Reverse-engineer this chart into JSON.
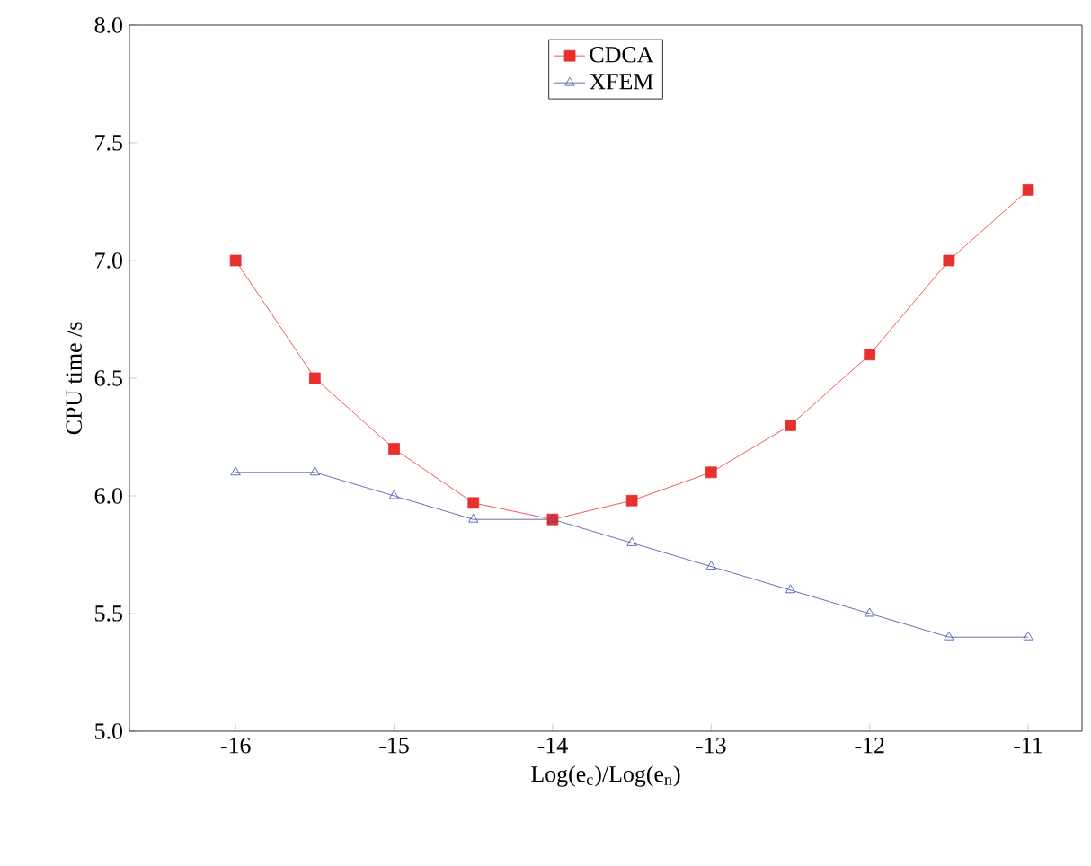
{
  "chart_data": {
    "type": "line",
    "xlabel": "Log(e$_{c}$)/Log(e$_{n}$)",
    "ylabel": "CPU time /s",
    "x": [
      -16,
      -15.5,
      -15,
      -14.5,
      -14,
      -13.5,
      -13,
      -12.5,
      -12,
      -11.5,
      -11
    ],
    "series": [
      {
        "name": "CDCA",
        "color": "#e8312e",
        "marker": "square",
        "values": [
          7.0,
          6.5,
          6.2,
          5.97,
          5.9,
          5.98,
          6.1,
          6.3,
          6.6,
          7.0,
          7.3
        ]
      },
      {
        "name": "XFEM",
        "color": "#3b4ba8",
        "marker": "triangle",
        "values": [
          6.1,
          6.1,
          6.0,
          5.9,
          5.9,
          5.8,
          5.7,
          5.6,
          5.5,
          5.4,
          5.4
        ]
      }
    ],
    "xlim": [
      -16.67,
      -10.66
    ],
    "ylim": [
      5.0,
      8.0
    ],
    "xticks": [
      {
        "value": -16,
        "label": "-16"
      },
      {
        "value": -15,
        "label": "-15"
      },
      {
        "value": -14,
        "label": "-14"
      },
      {
        "value": -13,
        "label": "-13"
      },
      {
        "value": -12,
        "label": "-12"
      },
      {
        "value": -11,
        "label": "-11"
      }
    ],
    "yticks": [
      {
        "value": 5.0,
        "label": "5.0"
      },
      {
        "value": 5.5,
        "label": "5.5"
      },
      {
        "value": 6.0,
        "label": "6.0"
      },
      {
        "value": 6.5,
        "label": "6.5"
      },
      {
        "value": 7.0,
        "label": "7.0"
      },
      {
        "value": 7.5,
        "label": "7.5"
      },
      {
        "value": 8.0,
        "label": "8.0"
      }
    ],
    "legend": "top",
    "grid": false,
    "line_style": "solid"
  }
}
